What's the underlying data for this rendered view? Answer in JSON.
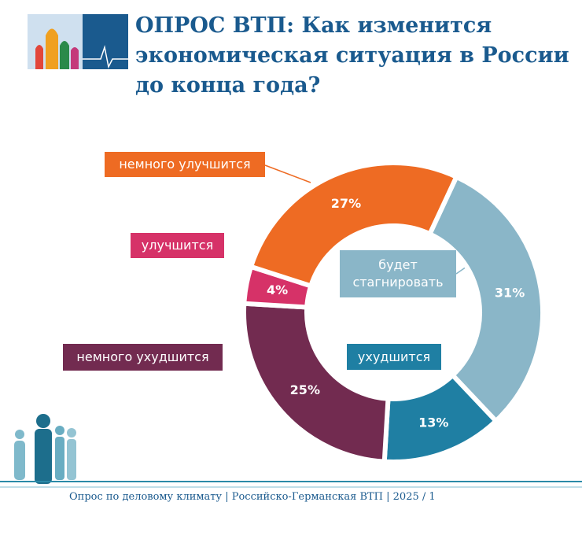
{
  "chart_data": {
    "type": "pie",
    "title": "ОПРОС ВТП: Как изменится экономическая ситуация в России до конца года?",
    "categories": [
      "будет стагнировать",
      "ухудшится",
      "немного ухудшится",
      "улучшится",
      "немного улучшится"
    ],
    "values": [
      31,
      13,
      25,
      4,
      27
    ],
    "value_labels": [
      "31%",
      "13%",
      "25%",
      "4%",
      "27%"
    ],
    "colors": [
      "#8ab6c8",
      "#1f7fa3",
      "#722b50",
      "#d63268",
      "#ee6b23"
    ],
    "footer": "Опрос по деловому климату | Российско-Германская ВТП |  2025 / 1"
  }
}
